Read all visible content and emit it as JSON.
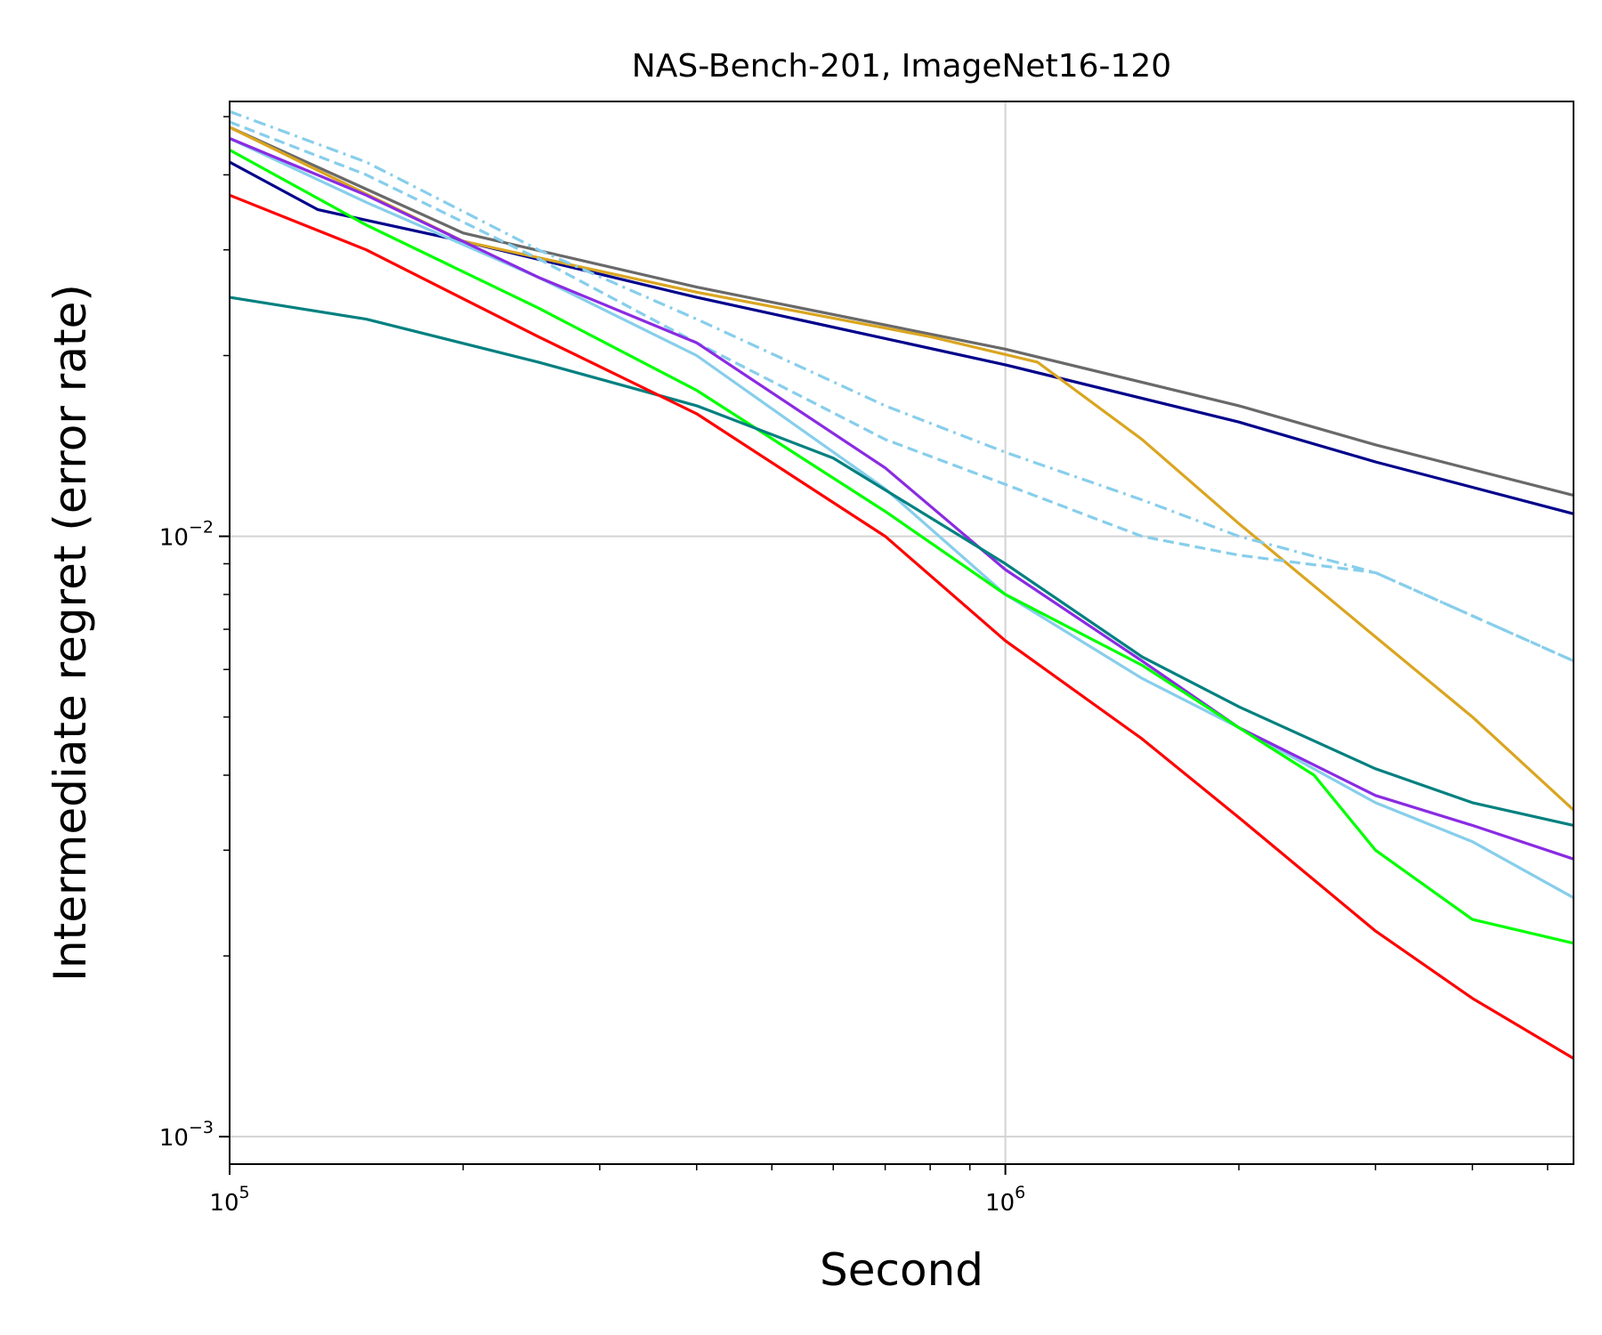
{
  "chart_data": {
    "type": "line",
    "title": "NAS-Bench-201, ImageNet16-120",
    "xlabel": "Second",
    "ylabel": "Intermediate regret (error rate)",
    "xscale": "log",
    "yscale": "log",
    "xlim": [
      100000,
      5400000
    ],
    "ylim": [
      0.0009,
      0.053
    ],
    "grid": true,
    "x_ticks": [
      {
        "value": 100000,
        "base": "10",
        "exp": "5"
      },
      {
        "value": 1000000,
        "base": "10",
        "exp": "6"
      }
    ],
    "y_ticks": [
      {
        "value": 0.01,
        "base": "10",
        "exp": "−2"
      },
      {
        "value": 0.001,
        "base": "10",
        "exp": "−3"
      }
    ],
    "series": [
      {
        "color": "#696969",
        "dash": "solid",
        "points": [
          [
            100000,
            0.048
          ],
          [
            200000,
            0.032
          ],
          [
            400000,
            0.026
          ],
          [
            1000000,
            0.0205
          ],
          [
            2000000,
            0.0165
          ],
          [
            3000000,
            0.0142
          ],
          [
            5400000,
            0.0117
          ]
        ]
      },
      {
        "color": "#00008B",
        "dash": "solid",
        "points": [
          [
            100000,
            0.042
          ],
          [
            130000,
            0.035
          ],
          [
            200000,
            0.031
          ],
          [
            400000,
            0.025
          ],
          [
            1000000,
            0.0193
          ],
          [
            2000000,
            0.0155
          ],
          [
            3000000,
            0.0133
          ],
          [
            5400000,
            0.0109
          ]
        ]
      },
      {
        "color": "#DAA520",
        "dash": "solid",
        "points": [
          [
            100000,
            0.048
          ],
          [
            200000,
            0.031
          ],
          [
            400000,
            0.0255
          ],
          [
            800000,
            0.0215
          ],
          [
            1100000,
            0.0195
          ],
          [
            1500000,
            0.0145
          ],
          [
            2000000,
            0.0105
          ],
          [
            3000000,
            0.0068
          ],
          [
            4000000,
            0.005
          ],
          [
            5400000,
            0.0035
          ]
        ]
      },
      {
        "color": "#87CEEB",
        "dash": "dashdot",
        "points": [
          [
            100000,
            0.051
          ],
          [
            150000,
            0.042
          ],
          [
            250000,
            0.03
          ],
          [
            400000,
            0.023
          ],
          [
            700000,
            0.0165
          ],
          [
            1000000,
            0.0138
          ],
          [
            1500000,
            0.0115
          ],
          [
            2000000,
            0.01
          ],
          [
            3000000,
            0.0087
          ],
          [
            5400000,
            0.0062
          ]
        ]
      },
      {
        "color": "#87CEEB",
        "dash": "dashed",
        "points": [
          [
            100000,
            0.049
          ],
          [
            150000,
            0.04
          ],
          [
            250000,
            0.029
          ],
          [
            400000,
            0.021
          ],
          [
            700000,
            0.0145
          ],
          [
            1000000,
            0.0122
          ],
          [
            1500000,
            0.01
          ],
          [
            2000000,
            0.0093
          ],
          [
            3000000,
            0.0087
          ],
          [
            5400000,
            0.0062
          ]
        ]
      },
      {
        "color": "#87CEEB",
        "dash": "solid",
        "points": [
          [
            100000,
            0.046
          ],
          [
            150000,
            0.036
          ],
          [
            250000,
            0.027
          ],
          [
            400000,
            0.02
          ],
          [
            700000,
            0.012
          ],
          [
            1000000,
            0.008
          ],
          [
            1500000,
            0.0058
          ],
          [
            2000000,
            0.0048
          ],
          [
            3000000,
            0.0036
          ],
          [
            4000000,
            0.0031
          ],
          [
            5400000,
            0.0025
          ]
        ]
      },
      {
        "color": "#8A2BE2",
        "dash": "solid",
        "points": [
          [
            100000,
            0.046
          ],
          [
            150000,
            0.037
          ],
          [
            250000,
            0.027
          ],
          [
            400000,
            0.021
          ],
          [
            700000,
            0.013
          ],
          [
            1000000,
            0.0088
          ],
          [
            1500000,
            0.0062
          ],
          [
            2000000,
            0.0048
          ],
          [
            3000000,
            0.0037
          ],
          [
            4000000,
            0.0033
          ],
          [
            5400000,
            0.0029
          ]
        ]
      },
      {
        "color": "#00FF00",
        "dash": "solid",
        "points": [
          [
            100000,
            0.044
          ],
          [
            150000,
            0.033
          ],
          [
            250000,
            0.024
          ],
          [
            400000,
            0.0175
          ],
          [
            700000,
            0.011
          ],
          [
            1000000,
            0.008
          ],
          [
            1500000,
            0.0061
          ],
          [
            2000000,
            0.0048
          ],
          [
            2500000,
            0.004
          ],
          [
            3000000,
            0.003
          ],
          [
            4000000,
            0.0023
          ],
          [
            5400000,
            0.0021
          ]
        ]
      },
      {
        "color": "#008080",
        "dash": "solid",
        "points": [
          [
            100000,
            0.025
          ],
          [
            150000,
            0.023
          ],
          [
            250000,
            0.0195
          ],
          [
            400000,
            0.0165
          ],
          [
            600000,
            0.0135
          ],
          [
            1000000,
            0.009
          ],
          [
            1500000,
            0.0063
          ],
          [
            2000000,
            0.0052
          ],
          [
            3000000,
            0.0041
          ],
          [
            4000000,
            0.0036
          ],
          [
            5400000,
            0.0033
          ]
        ]
      },
      {
        "color": "#FF0000",
        "dash": "solid",
        "points": [
          [
            100000,
            0.037
          ],
          [
            150000,
            0.03
          ],
          [
            250000,
            0.0215
          ],
          [
            400000,
            0.016
          ],
          [
            700000,
            0.01
          ],
          [
            1000000,
            0.0067
          ],
          [
            1500000,
            0.0046
          ],
          [
            2000000,
            0.0034
          ],
          [
            3000000,
            0.0022
          ],
          [
            4000000,
            0.0017
          ],
          [
            5400000,
            0.00135
          ]
        ]
      }
    ]
  }
}
